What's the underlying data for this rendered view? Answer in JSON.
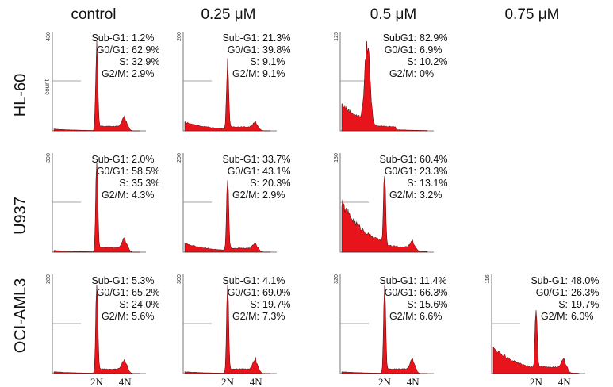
{
  "figure": {
    "columns": [
      "control",
      "0.25 μM",
      "0.5 μM",
      "0.75 μM"
    ],
    "rows": [
      "HL-60",
      "U937",
      "OCI-AML3"
    ],
    "y_axis_label": "count",
    "x_tick_labels": [
      "2N",
      "4N"
    ],
    "colors": {
      "histogram_fill": "#e8141c",
      "histogram_outline": "#4a0a0a"
    }
  },
  "chart_data": [
    {
      "type": "area",
      "row": "HL-60",
      "column": "control",
      "ymax": "430",
      "ylabel": "count",
      "xticks": [],
      "profile": "normal",
      "stats": [
        {
          "label": "Sub-G1:",
          "value": "1.2%"
        },
        {
          "label": "G0/G1:",
          "value": "62.9%"
        },
        {
          "label": "S:",
          "value": "32.9%"
        },
        {
          "label": "G2/M:",
          "value": "2.9%"
        }
      ]
    },
    {
      "type": "area",
      "row": "HL-60",
      "column": "0.25 μM",
      "ymax": "200",
      "ylabel": "",
      "xticks": [],
      "profile": "mild",
      "stats": [
        {
          "label": "Sub-G1:",
          "value": "21.3%"
        },
        {
          "label": "G0/G1:",
          "value": "39.8%"
        },
        {
          "label": "S:",
          "value": "9.1%"
        },
        {
          "label": "G2/M:",
          "value": "9.1%"
        }
      ]
    },
    {
      "type": "area",
      "row": "HL-60",
      "column": "0.5 μM",
      "ymax": "125",
      "ylabel": "",
      "xticks": [],
      "profile": "heavy",
      "stats": [
        {
          "label": "SubG1:",
          "value": "82.9%"
        },
        {
          "label": "G0/G1:",
          "value": "6.9%"
        },
        {
          "label": "S:",
          "value": "10.2%"
        },
        {
          "label": "G2/M:",
          "value": "0%"
        }
      ]
    },
    {
      "type": "area",
      "row": "U937",
      "column": "control",
      "ymax": "390",
      "ylabel": "",
      "xticks": [],
      "profile": "normal",
      "stats": [
        {
          "label": "Sub-G1:",
          "value": "2.0%"
        },
        {
          "label": "G0/G1:",
          "value": "58.5%"
        },
        {
          "label": "S:",
          "value": "35.3%"
        },
        {
          "label": "G2/M:",
          "value": "4.3%"
        }
      ]
    },
    {
      "type": "area",
      "row": "U937",
      "column": "0.25 μM",
      "ymax": "200",
      "ylabel": "",
      "xticks": [],
      "profile": "mild",
      "stats": [
        {
          "label": "Sub-G1:",
          "value": "33.7%"
        },
        {
          "label": "G0/G1:",
          "value": "43.1%"
        },
        {
          "label": "S:",
          "value": "20.3%"
        },
        {
          "label": "G2/M:",
          "value": "2.9%"
        }
      ]
    },
    {
      "type": "area",
      "row": "U937",
      "column": "0.5 μM",
      "ymax": "130",
      "ylabel": "",
      "xticks": [],
      "profile": "heavy2",
      "stats": [
        {
          "label": "Sub-G1:",
          "value": "60.4%"
        },
        {
          "label": "G0/G1:",
          "value": "23.3%"
        },
        {
          "label": "S:",
          "value": "13.1%"
        },
        {
          "label": "G2/M:",
          "value": "3.2%"
        }
      ]
    },
    {
      "type": "area",
      "row": "OCI-AML3",
      "column": "control",
      "ymax": "280",
      "ylabel": "",
      "xticks": [
        "2N",
        "4N"
      ],
      "profile": "normal",
      "stats": [
        {
          "label": "Sub-G1:",
          "value": "5.3%"
        },
        {
          "label": "G0/G1:",
          "value": "65.2%"
        },
        {
          "label": "S:",
          "value": "24.0%"
        },
        {
          "label": "G2/M:",
          "value": "5.6%"
        }
      ]
    },
    {
      "type": "area",
      "row": "OCI-AML3",
      "column": "0.25 μM",
      "ymax": "300",
      "ylabel": "",
      "xticks": [
        "2N",
        "4N"
      ],
      "profile": "normal",
      "stats": [
        {
          "label": "Sub-G1:",
          "value": "4.1%"
        },
        {
          "label": "G0/G1:",
          "value": "69.0%"
        },
        {
          "label": "S:",
          "value": "19.7%"
        },
        {
          "label": "G2/M:",
          "value": "7.3%"
        }
      ]
    },
    {
      "type": "area",
      "row": "OCI-AML3",
      "column": "0.5 μM",
      "ymax": "320",
      "ylabel": "",
      "xticks": [
        "2N",
        "4N"
      ],
      "profile": "normal",
      "stats": [
        {
          "label": "Sub-G1:",
          "value": "11.4%"
        },
        {
          "label": "G0/G1:",
          "value": "66.3%"
        },
        {
          "label": "S:",
          "value": "15.6%"
        },
        {
          "label": "G2/M:",
          "value": "6.6%"
        }
      ]
    },
    {
      "type": "area",
      "row": "OCI-AML3",
      "column": "0.75 μM",
      "ymax": "116",
      "ylabel": "",
      "xticks": [
        "2N",
        "4N"
      ],
      "profile": "late",
      "stats": [
        {
          "label": "Sub-G1:",
          "value": "48.0%"
        },
        {
          "label": "G0/G1:",
          "value": "26.3%"
        },
        {
          "label": "S:",
          "value": "19.7%"
        },
        {
          "label": "G2/M:",
          "value": "6.0%"
        }
      ]
    }
  ]
}
